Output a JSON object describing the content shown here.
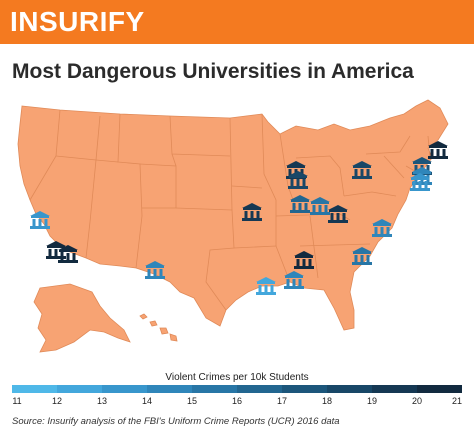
{
  "header": {
    "logo": "INSURIFY",
    "brand_color": "#f47a20"
  },
  "title": "Most Dangerous Universities in America",
  "map": {
    "land_color": "#f7a373",
    "border_color": "#e08a58",
    "icon_name": "university-building-icon",
    "universities": [
      {
        "state": "CA (north)",
        "crimes_per_10k": 13
      },
      {
        "state": "CA (LA)",
        "crimes_per_10k": 21
      },
      {
        "state": "CA (LA)",
        "crimes_per_10k": 20
      },
      {
        "state": "NM",
        "crimes_per_10k": 14
      },
      {
        "state": "MO",
        "crimes_per_10k": 19
      },
      {
        "state": "WI",
        "crimes_per_10k": 19
      },
      {
        "state": "IL",
        "crimes_per_10k": 18
      },
      {
        "state": "IN",
        "crimes_per_10k": 16
      },
      {
        "state": "IN",
        "crimes_per_10k": 15
      },
      {
        "state": "OH",
        "crimes_per_10k": 19
      },
      {
        "state": "MI",
        "crimes_per_10k": 18
      },
      {
        "state": "NY",
        "crimes_per_10k": 17
      },
      {
        "state": "NY",
        "crimes_per_10k": 14
      },
      {
        "state": "MA",
        "crimes_per_10k": 20
      },
      {
        "state": "CT",
        "crimes_per_10k": 13
      },
      {
        "state": "VA",
        "crimes_per_10k": 14
      },
      {
        "state": "NC",
        "crimes_per_10k": 15
      },
      {
        "state": "AL",
        "crimes_per_10k": 20
      },
      {
        "state": "MS",
        "crimes_per_10k": 14
      },
      {
        "state": "LA",
        "crimes_per_10k": 12
      }
    ]
  },
  "legend": {
    "title": "Violent Crimes per 10k Students",
    "ticks": [
      "11",
      "12",
      "13",
      "14",
      "15",
      "16",
      "17",
      "18",
      "19",
      "20",
      "21"
    ],
    "colors": [
      "#4fb8e8",
      "#43a7dc",
      "#3896cc",
      "#2f86ba",
      "#2876a6",
      "#226690",
      "#1c567b",
      "#184767",
      "#153853",
      "#122a3f"
    ]
  },
  "source": "Source: Insurify analysis of the FBI's Uniform Crime Reports (UCR) 2016 data"
}
